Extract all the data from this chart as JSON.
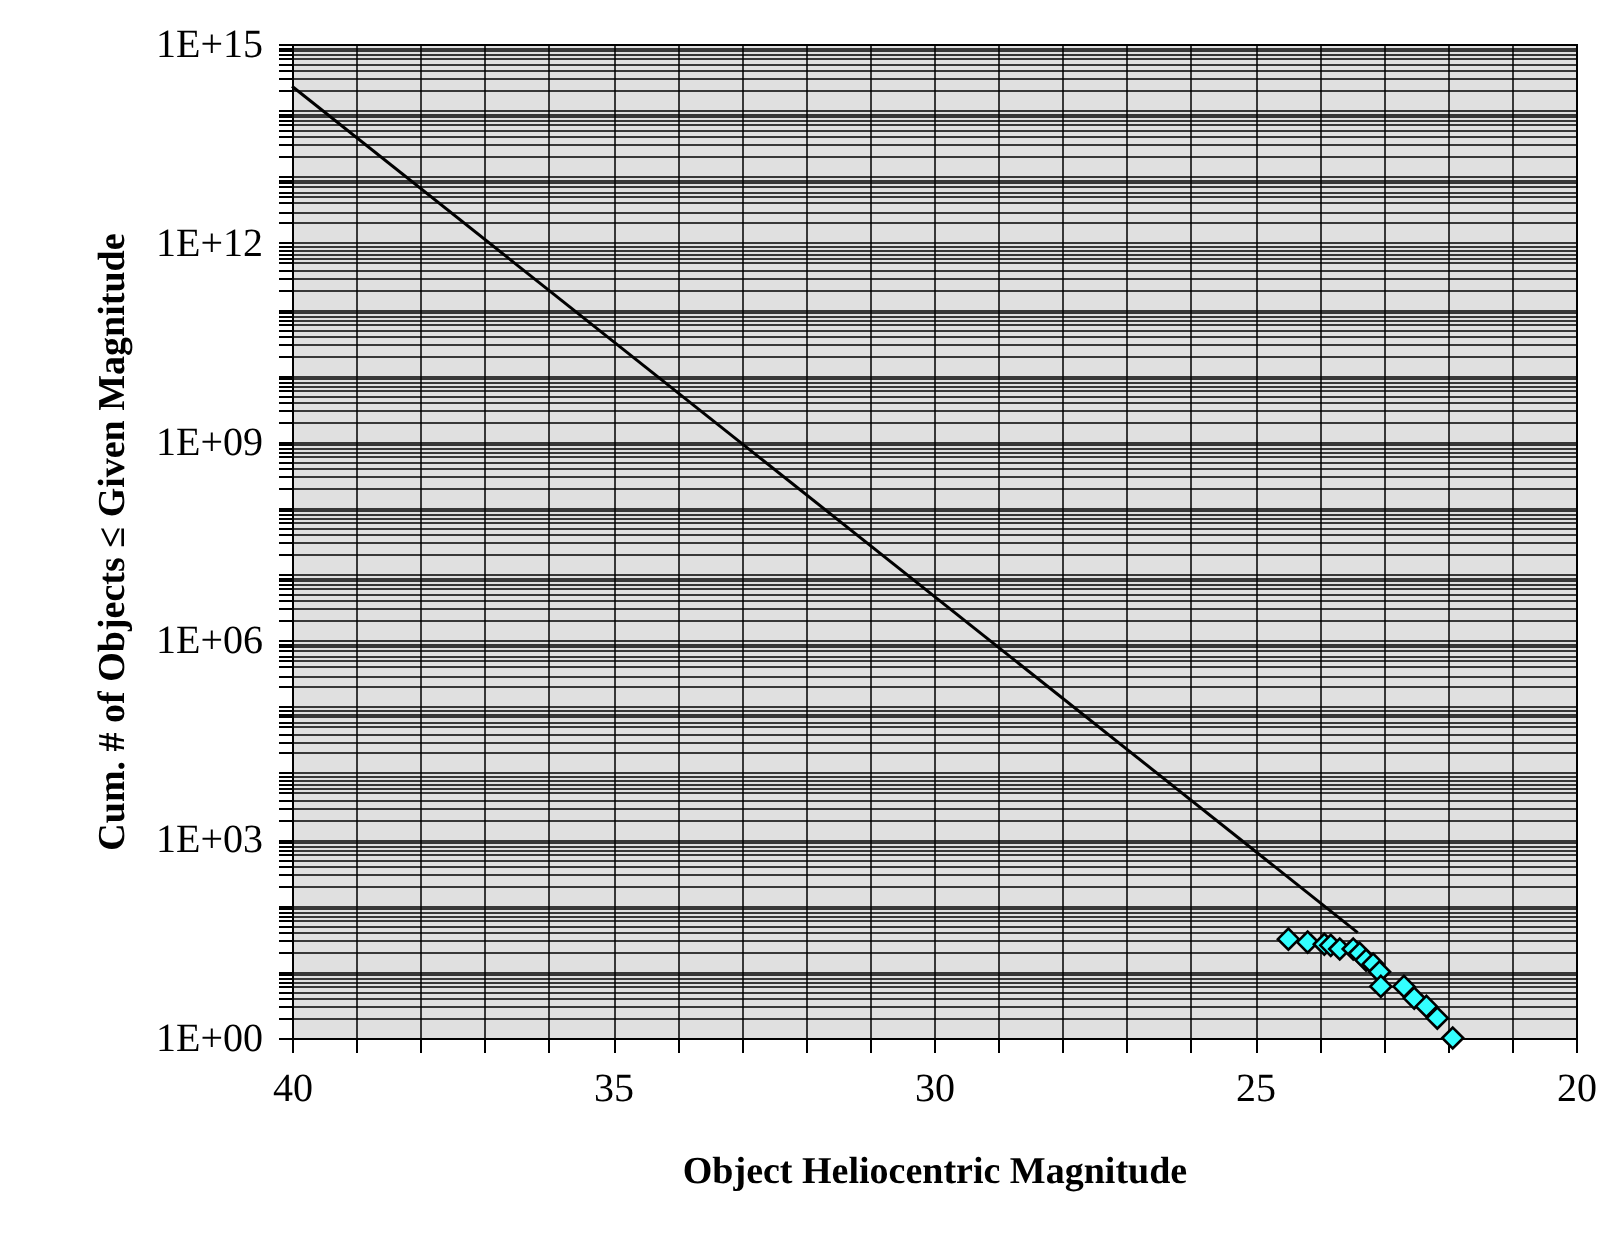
{
  "chart_data": {
    "type": "scatter",
    "xlabel": "Object Heliocentric Magnitude",
    "ylabel": "Cum. # of Objects ≤ Given Magnitude",
    "xlim": [
      40,
      20
    ],
    "xticks": [
      40,
      35,
      30,
      25,
      20
    ],
    "ylim": [
      1,
      1000000000000000.0
    ],
    "yticks": [
      {
        "value": 1,
        "label": "1E+00"
      },
      {
        "value": 1000,
        "label": "1E+03"
      },
      {
        "value": 1000000,
        "label": "1E+06"
      },
      {
        "value": 1000000000,
        "label": "1E+09"
      },
      {
        "value": 1000000000000,
        "label": "1E+12"
      },
      {
        "value": 1000000000000000,
        "label": "1E+15"
      }
    ],
    "log": "y",
    "grid": true,
    "series": [
      {
        "type": "line",
        "color": "#000000",
        "marker": "none",
        "line_style": "solid",
        "x": [
          40,
          23.4
        ],
        "values": [
          230000000000000,
          39
        ]
      },
      {
        "color": "#33ffff",
        "marker": "diamond",
        "x": [
          24.48,
          24.18,
          23.92,
          23.82,
          23.68,
          23.47,
          23.37,
          23.27,
          23.16,
          23.06,
          23.04,
          22.68,
          22.52,
          22.33,
          22.16,
          21.92
        ],
        "values": [
          31,
          28,
          26,
          25,
          22,
          22,
          19,
          15,
          13,
          10,
          6,
          6,
          4,
          3,
          2,
          1
        ]
      }
    ]
  }
}
